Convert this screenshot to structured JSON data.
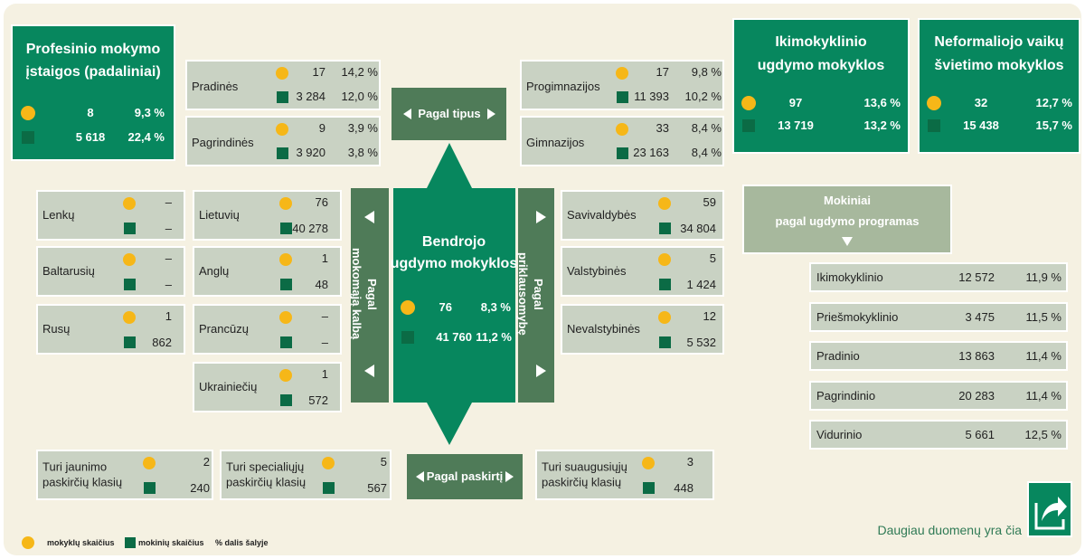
{
  "vocational": {
    "title": [
      "Profesinio mokymo",
      "įstaigos (padaliniai)"
    ],
    "schools": "8",
    "schools_share": "9,3 %",
    "students": "5 618",
    "students_share": "22,4 %"
  },
  "preschool": {
    "title": [
      "Ikimokyklinio",
      "ugdymo mokyklos"
    ],
    "schools": "97",
    "schools_share": "13,6 %",
    "students": "13 719",
    "students_share": "13,2 %"
  },
  "nonformal": {
    "title": [
      "Neformaliojo vaikų",
      "švietimo mokyklos"
    ],
    "schools": "32",
    "schools_share": "12,7 %",
    "students": "15 438",
    "students_share": "15,7 %"
  },
  "general": {
    "title": [
      "Bendrojo",
      "ugdymo mokyklos"
    ],
    "schools": "76",
    "schools_share": "8,3 %",
    "students": "41 760",
    "students_share": "11,2 %"
  },
  "by_type": {
    "label": "Pagal tipus",
    "items": [
      {
        "name": "Pradinės",
        "schools": "17",
        "schools_share": "14,2 %",
        "students": "3 284",
        "students_share": "12,0 %"
      },
      {
        "name": "Pagrindinės",
        "schools": "9",
        "schools_share": "3,9 %",
        "students": "3 920",
        "students_share": "3,8 %"
      },
      {
        "name": "Progimnazijos",
        "schools": "17",
        "schools_share": "9,8 %",
        "students": "11 393",
        "students_share": "10,2 %"
      },
      {
        "name": "Gimnazijos",
        "schools": "33",
        "schools_share": "8,4 %",
        "students": "23 163",
        "students_share": "8,4 %"
      }
    ]
  },
  "by_language": {
    "label": [
      "Pagal",
      "mokomąją kalbą"
    ],
    "items": [
      {
        "name": "Lenkų",
        "schools": "–",
        "students": "–"
      },
      {
        "name": "Baltarusių",
        "schools": "–",
        "students": "–"
      },
      {
        "name": "Rusų",
        "schools": "1",
        "students": "862"
      },
      {
        "name": "Lietuvių",
        "schools": "76",
        "students": "40 278"
      },
      {
        "name": "Anglų",
        "schools": "1",
        "students": "48"
      },
      {
        "name": "Prancūzų",
        "schools": "–",
        "students": "–"
      },
      {
        "name": "Ukrainiečių",
        "schools": "1",
        "students": "572"
      }
    ]
  },
  "by_ownership": {
    "label": [
      "Pagal",
      "priklausomybę"
    ],
    "items": [
      {
        "name": "Savivaldybės",
        "schools": "59",
        "students": "34 804"
      },
      {
        "name": "Valstybinės",
        "schools": "5",
        "students": "1 424"
      },
      {
        "name": "Nevalstybinės",
        "schools": "12",
        "students": "5 532"
      }
    ]
  },
  "by_purpose": {
    "label": "Pagal paskirtį",
    "items": [
      {
        "name": [
          "Turi jaunimo",
          "paskirčių klasių"
        ],
        "schools": "2",
        "students": "240"
      },
      {
        "name": [
          "Turi specialiųjų",
          "paskirčių klasių"
        ],
        "schools": "5",
        "students": "567"
      },
      {
        "name": [
          "Turi suaugusiųjų",
          "paskirčių klasių"
        ],
        "schools": "3",
        "students": "448"
      }
    ]
  },
  "programs": {
    "title": [
      "Mokiniai",
      "pagal ugdymo programas"
    ],
    "rows": [
      {
        "name": "Ikimokyklinio",
        "students": "12 572",
        "share": "11,9 %"
      },
      {
        "name": "Priešmokyklinio",
        "students": "3 475",
        "share": "11,5 %"
      },
      {
        "name": "Pradinio",
        "students": "13 863",
        "share": "11,4 %"
      },
      {
        "name": "Pagrindinio",
        "students": "20 283",
        "share": "11,4 %"
      },
      {
        "name": "Vidurinio",
        "students": "5 661",
        "share": "12,5 %"
      }
    ]
  },
  "legend": {
    "schools": "mokyklų skaičius",
    "students": "mokinių skaičius",
    "share": "% dalis šalyje"
  },
  "more_link": "Daugiau duomenų yra čia"
}
